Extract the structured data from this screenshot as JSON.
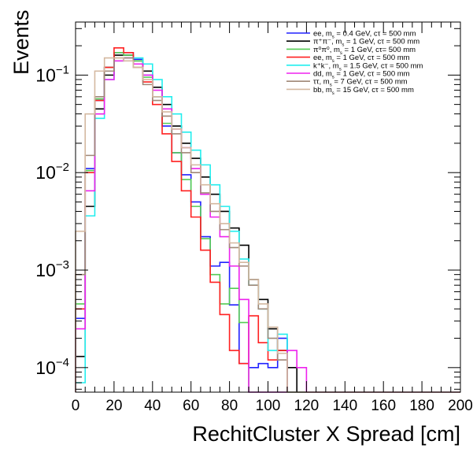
{
  "chart_data": {
    "type": "histogram",
    "title": "",
    "xlabel": "RechitCluster X Spread [cm]",
    "ylabel": "Events",
    "xlim": [
      0,
      200
    ],
    "ylim": [
      5.6e-05,
      0.35
    ],
    "yscale": "log",
    "bin_width": 5,
    "grid": false,
    "legend_position": "top-right",
    "x_ticks": [
      "0",
      "20",
      "40",
      "60",
      "80",
      "100",
      "120",
      "140",
      "160",
      "180",
      "200"
    ],
    "y_ticks": [
      {
        "value": 0.1,
        "base": "10",
        "exp": "−1"
      },
      {
        "value": 0.01,
        "base": "10",
        "exp": "−2"
      },
      {
        "value": 0.001,
        "base": "10",
        "exp": "−3"
      },
      {
        "value": 0.0001,
        "base": "10",
        "exp": "−4"
      }
    ],
    "series": [
      {
        "name": "ee, m_s = 0.4 GeV, cτ = 500 mm",
        "label_parts": [
          "ee, m",
          "s",
          " = 0.4 GeV, cτ = 500 mm"
        ],
        "color": "#2020ff",
        "values": [
          0.00032,
          0.011,
          0.055,
          0.12,
          0.17,
          0.17,
          0.145,
          0.1,
          0.06,
          0.03,
          0.016,
          0.0095,
          0.005,
          0.0022,
          0.0011,
          0.0012,
          0.00044,
          0.00011,
          0.0001,
          0.00011,
          0.0001,
          0.0002,
          0.0
        ]
      },
      {
        "name": "π+π-, m_s = 1 GeV, cτ = 500 mm",
        "label_parts": [
          "π⁺π⁻, m",
          "s",
          " = 1 GeV, cτ = 500 mm"
        ],
        "color": "#000000",
        "values": [
          0.00013,
          0.0045,
          0.045,
          0.1,
          0.16,
          0.16,
          0.14,
          0.11,
          0.075,
          0.05,
          0.03,
          0.02,
          0.014,
          0.009,
          0.006,
          0.004,
          0.0027,
          0.0018,
          0.0008,
          0.0005,
          0.00025,
          0.00015,
          0.0001
        ]
      },
      {
        "name": "π0π0, m_s = 1 GeV, cτ = 500 mm",
        "label_parts": [
          "π⁰π⁰, m",
          "s",
          " = 1 GeV, cτ= 500 mm"
        ],
        "color": "#55cc55",
        "values": [
          0.00045,
          0.0105,
          0.057,
          0.12,
          0.17,
          0.16,
          0.14,
          0.095,
          0.06,
          0.032,
          0.016,
          0.0085,
          0.0045,
          0.0021,
          0.0009,
          0.00045,
          0.00065,
          0.00029,
          0.0,
          0.0,
          0.0,
          0.0,
          0.0
        ]
      },
      {
        "name": "ee, m_s = 1 GeV, cτ = 500 mm",
        "label_parts": [
          "ee, m",
          "s",
          " = 1 GeV, cτ = 500 mm"
        ],
        "color": "#ff2020",
        "values": [
          0.0004,
          0.01,
          0.055,
          0.12,
          0.19,
          0.17,
          0.13,
          0.085,
          0.05,
          0.025,
          0.013,
          0.0065,
          0.0035,
          0.0016,
          0.00075,
          0.00035,
          0.00015,
          0.00011,
          0.00034,
          0.00018,
          0.00012,
          0.00015,
          0.0
        ]
      },
      {
        "name": "k+k-, m_s = 1.5 GeV, cτ = 500 mm",
        "label_parts": [
          "k⁺k⁻, m",
          "s",
          " = 1.5 GeV, cτ = 500 mm"
        ],
        "color": "#22eeee",
        "values": [
          7e-05,
          0.0036,
          0.036,
          0.09,
          0.14,
          0.15,
          0.15,
          0.13,
          0.09,
          0.06,
          0.04,
          0.026,
          0.017,
          0.012,
          0.0075,
          0.0045,
          0.0025,
          0.0013,
          0.0007,
          0.0004,
          0.00015,
          0.00022,
          0.0
        ]
      },
      {
        "name": "dd, m_s = 1 GeV, cτ = 500 mm",
        "label_parts": [
          "dd, m",
          "s",
          " = 1 GeV, cτ = 500 mm"
        ],
        "color": "#ee22ee",
        "values": [
          0.00025,
          0.0065,
          0.04,
          0.09,
          0.14,
          0.15,
          0.13,
          0.1,
          0.07,
          0.045,
          0.028,
          0.018,
          0.011,
          0.006,
          0.0035,
          0.0022,
          0.0011,
          0.0005,
          0.0,
          0.0,
          0.0,
          0.0,
          0.00015,
          0.0001
        ]
      },
      {
        "name": "ττ, m_s = 7 GeV, cτ = 500 mm",
        "label_parts": [
          "ττ, m",
          "s",
          " = 7 GeV, cτ = 500 mm"
        ],
        "color": "#a08878",
        "values": [
          0.0009,
          0.015,
          0.06,
          0.11,
          0.15,
          0.15,
          0.12,
          0.08,
          0.055,
          0.038,
          0.025,
          0.016,
          0.01,
          0.0062,
          0.004,
          0.0026,
          0.0017,
          0.0011,
          0.0007,
          0.0004,
          0.0002,
          0.00012,
          0.0
        ]
      },
      {
        "name": "bb, m_s = 15 GeV, cτ = 500 mm",
        "label_parts": [
          "bb, m",
          "s",
          " = 15 GeV, cτ = 500 mm"
        ],
        "color": "#d4b8a0",
        "values": [
          0.0025,
          0.04,
          0.11,
          0.15,
          0.15,
          0.14,
          0.12,
          0.09,
          0.06,
          0.042,
          0.028,
          0.018,
          0.012,
          0.0075,
          0.0048,
          0.003,
          0.0019,
          0.0012,
          0.0008,
          0.00045,
          0.00026,
          0.00014,
          0.0
        ]
      }
    ]
  }
}
